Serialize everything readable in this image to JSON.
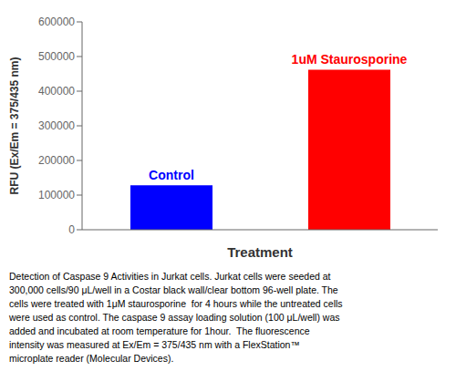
{
  "chart_data": {
    "type": "bar",
    "categories": [
      "Control",
      "1uM Staurosporine"
    ],
    "values": [
      128000,
      462000
    ],
    "colors": [
      "#0000FF",
      "#FF0000"
    ],
    "xlabel": "Treatment",
    "ylabel": "RFU (Ex/Em = 375/435 nm)",
    "ylim": [
      0,
      600000
    ],
    "yticks": [
      0,
      100000,
      200000,
      300000,
      400000,
      500000,
      600000
    ],
    "tick_labels": "y",
    "annotations": [
      "Detection of Caspase 9 Activities in Jurkat cells. Jurkat cells were seeded at\n300,000 cells/90 μL/well in a Costar black wall/clear bottom 96-well plate. The\ncells were treated with 1μM staurosporine  for 4 hours while the untreated cells\nwere used as control. The caspase 9 assay loading solution (100 μL/well) was\nadded and incubated at room temperature for 1hour.  The fluorescence\nintensity was measured at Ex/Em = 375/435 nm with a FlexStation™\nmicroplate reader (Molecular Devices)."
    ]
  }
}
